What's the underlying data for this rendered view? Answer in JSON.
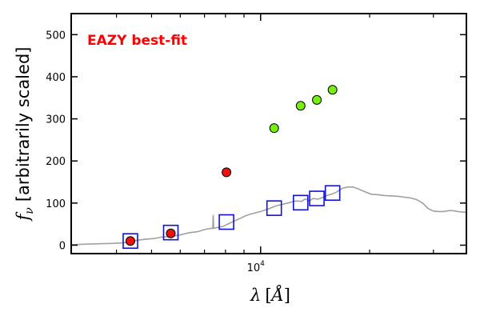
{
  "chart_data": {
    "type": "scatter",
    "annotation": "EAZY best-fit",
    "annotation_color": "#ff0000",
    "ylabel_symbol": "f",
    "ylabel_subscript": "ν",
    "ylabel_text": "[arbitrarily scaled]",
    "xlabel_symbol": "λ",
    "xlabel_open": "[",
    "xlabel_unit": "Å",
    "xlabel_close": "]",
    "xscale": "log",
    "xlim": [
      3000,
      37000
    ],
    "ylim": [
      -20,
      550
    ],
    "yticks": [
      0,
      100,
      200,
      300,
      400,
      500
    ],
    "xtick_labeled": [
      {
        "value": 10000,
        "base": "10",
        "exp": "4"
      }
    ],
    "xtick_minor": [
      4000,
      5000,
      6000,
      7000,
      8000,
      9000,
      20000,
      30000
    ],
    "sed_color": "#a0a0a0",
    "sed_curve": [
      [
        3000,
        1
      ],
      [
        3400,
        3
      ],
      [
        3800,
        4
      ],
      [
        4100,
        5
      ],
      [
        4300,
        7
      ],
      [
        4500,
        11
      ],
      [
        4800,
        14
      ],
      [
        5100,
        16
      ],
      [
        5300,
        19
      ],
      [
        5500,
        20
      ],
      [
        5800,
        22
      ],
      [
        6100,
        26
      ],
      [
        6400,
        30
      ],
      [
        6700,
        32
      ],
      [
        7000,
        37
      ],
      [
        7200,
        39
      ],
      [
        7300,
        40
      ],
      [
        7380,
        40
      ],
      [
        7400,
        72
      ],
      [
        7420,
        40
      ],
      [
        7600,
        42
      ],
      [
        7900,
        45
      ],
      [
        8200,
        52
      ],
      [
        8500,
        58
      ],
      [
        8800,
        64
      ],
      [
        9100,
        70
      ],
      [
        9400,
        74
      ],
      [
        9700,
        77
      ],
      [
        10000,
        80
      ],
      [
        10500,
        86
      ],
      [
        11000,
        93
      ],
      [
        11500,
        97
      ],
      [
        12000,
        101
      ],
      [
        12500,
        105
      ],
      [
        13000,
        104
      ],
      [
        13300,
        110
      ],
      [
        13600,
        105
      ],
      [
        14000,
        111
      ],
      [
        14400,
        109
      ],
      [
        14800,
        113
      ],
      [
        15200,
        118
      ],
      [
        15700,
        121
      ],
      [
        16200,
        126
      ],
      [
        16800,
        135
      ],
      [
        17400,
        138
      ],
      [
        18000,
        138
      ],
      [
        18700,
        133
      ],
      [
        19400,
        127
      ],
      [
        20200,
        121
      ],
      [
        21000,
        120
      ],
      [
        22000,
        118
      ],
      [
        23000,
        117
      ],
      [
        24000,
        116
      ],
      [
        25000,
        114
      ],
      [
        26000,
        112
      ],
      [
        27000,
        108
      ],
      [
        28000,
        100
      ],
      [
        29000,
        87
      ],
      [
        30000,
        81
      ],
      [
        31000,
        80
      ],
      [
        32000,
        80
      ],
      [
        33000,
        82
      ],
      [
        34000,
        82
      ],
      [
        35000,
        80
      ],
      [
        37000,
        78
      ]
    ],
    "series": [
      {
        "marker": "square",
        "stroke": "#1111dd",
        "points": [
          [
            4370,
            10
          ],
          [
            5650,
            30
          ],
          [
            8050,
            55
          ],
          [
            10900,
            88
          ],
          [
            12900,
            101
          ],
          [
            14300,
            111
          ],
          [
            15800,
            124
          ]
        ]
      },
      {
        "marker": "circle",
        "fill": "#ee1111",
        "points": [
          [
            4370,
            10
          ],
          [
            5650,
            28
          ],
          [
            8050,
            173
          ]
        ]
      },
      {
        "marker": "circle",
        "fill": "#77ee11",
        "points": [
          [
            10900,
            278
          ],
          [
            12900,
            331
          ],
          [
            14300,
            345
          ],
          [
            15800,
            369
          ]
        ]
      }
    ]
  }
}
